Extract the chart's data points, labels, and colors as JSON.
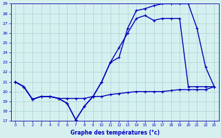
{
  "title": "Graphe des températures (°c)",
  "bg_color": "#d6f0f0",
  "grid_color": "#b0d8d8",
  "line_color": "#0000bb",
  "spine_color": "#2222aa",
  "xlim": [
    -0.5,
    23.5
  ],
  "ylim": [
    17,
    29
  ],
  "xticks": [
    0,
    1,
    2,
    3,
    4,
    5,
    6,
    7,
    8,
    9,
    10,
    11,
    12,
    13,
    14,
    15,
    16,
    17,
    18,
    19,
    20,
    21,
    22,
    23
  ],
  "yticks": [
    17,
    18,
    19,
    20,
    21,
    22,
    23,
    24,
    25,
    26,
    27,
    28,
    29
  ],
  "line1_x": [
    0,
    1,
    2,
    3,
    4,
    5,
    6,
    7,
    8,
    9,
    10,
    11,
    12,
    13,
    14,
    15,
    16,
    17,
    18,
    19,
    20,
    21,
    22,
    23
  ],
  "line1_y": [
    21.0,
    20.5,
    19.2,
    19.5,
    19.5,
    19.3,
    18.8,
    17.1,
    18.5,
    19.5,
    21.0,
    23.0,
    23.5,
    26.5,
    28.3,
    28.5,
    28.8,
    29.0,
    29.0,
    29.0,
    29.0,
    26.5,
    22.5,
    20.5
  ],
  "line2_x": [
    0,
    1,
    2,
    3,
    4,
    5,
    6,
    7,
    8,
    9,
    10,
    11,
    12,
    13,
    14,
    15,
    16,
    17,
    18,
    19,
    20,
    21,
    22,
    23
  ],
  "line2_y": [
    21.0,
    20.5,
    19.2,
    19.5,
    19.5,
    19.3,
    18.8,
    17.1,
    18.5,
    19.5,
    21.0,
    23.0,
    24.5,
    26.0,
    27.5,
    27.8,
    27.3,
    27.5,
    27.5,
    27.5,
    20.5,
    20.5,
    20.5,
    20.5
  ],
  "line3_x": [
    0,
    1,
    2,
    3,
    4,
    5,
    6,
    7,
    8,
    9,
    10,
    11,
    12,
    13,
    14,
    15,
    16,
    17,
    18,
    19,
    20,
    21,
    22,
    23
  ],
  "line3_y": [
    21.0,
    20.5,
    19.2,
    19.5,
    19.5,
    19.3,
    19.3,
    19.3,
    19.3,
    19.5,
    19.5,
    19.7,
    19.8,
    19.9,
    20.0,
    20.0,
    20.0,
    20.0,
    20.1,
    20.2,
    20.2,
    20.2,
    20.2,
    20.5
  ]
}
